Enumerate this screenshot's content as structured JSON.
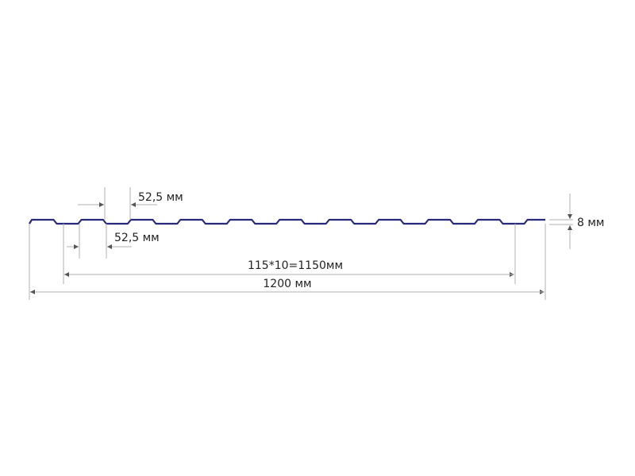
{
  "diagram": {
    "labels": {
      "crest_width": "52,5 мм",
      "trough_width": "52,5 мм",
      "pitch_total": "115*10=1150мм",
      "overall_width": "1200 мм",
      "height": "8 мм"
    },
    "colors": {
      "profile": "#2a2a7a",
      "dimension_lines": "#b0b0b0"
    }
  }
}
